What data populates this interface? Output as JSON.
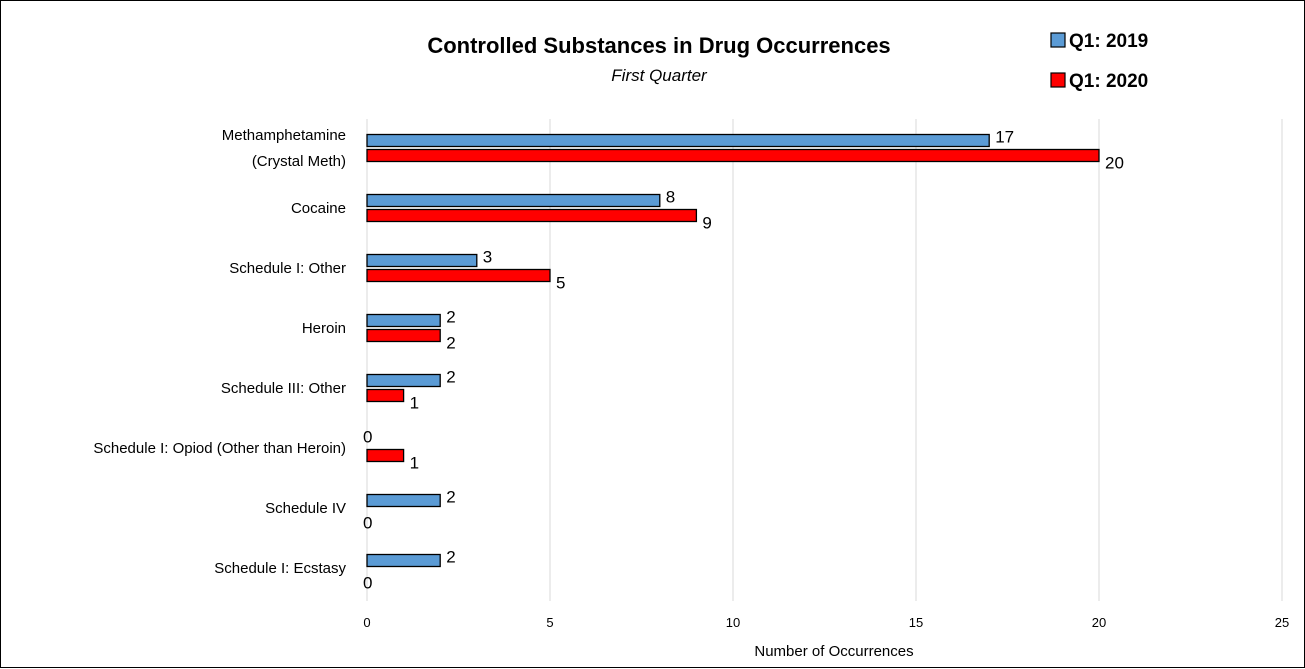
{
  "chart_data": {
    "type": "bar",
    "orientation": "horizontal",
    "title": "Controlled Substances in Drug Occurrences",
    "subtitle": "First Quarter",
    "xlabel": "Number of Occurrences",
    "ylabel": "",
    "xlim": [
      0,
      25
    ],
    "xticks": [
      "0",
      "5",
      "10",
      "15",
      "20",
      "25"
    ],
    "grid": "vertical",
    "legend_position": "top-right",
    "categories": [
      [
        "Methamphetamine",
        "(Crystal Meth)"
      ],
      [
        "Cocaine"
      ],
      [
        "Schedule I: Other"
      ],
      [
        "Heroin"
      ],
      [
        "Schedule III: Other"
      ],
      [
        "Schedule I: Opiod (Other than Heroin)"
      ],
      [
        "Schedule IV"
      ],
      [
        "Schedule I: Ecstasy"
      ]
    ],
    "series": [
      {
        "name": "Q1: 2019",
        "color": "#5B9BD5",
        "values": [
          17,
          8,
          3,
          2,
          2,
          0,
          2,
          2
        ]
      },
      {
        "name": "Q1: 2020",
        "color": "#FF0000",
        "values": [
          20,
          9,
          5,
          2,
          1,
          1,
          0,
          0
        ]
      }
    ]
  }
}
